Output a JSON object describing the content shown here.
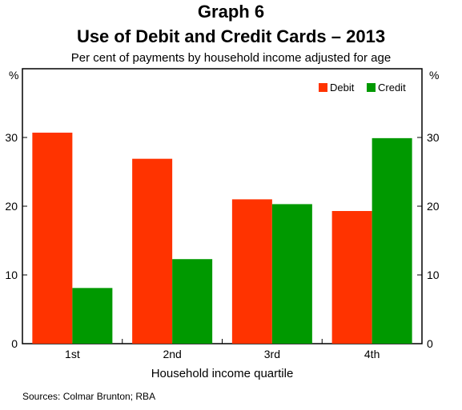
{
  "chart_data": {
    "type": "bar",
    "title": "Graph 6",
    "subtitle": "Use of Debit and Credit Cards – 2013",
    "description": "Per cent of payments by household income adjusted for age",
    "xlabel": "Household income quartile",
    "ylabel_left": "%",
    "ylabel_right": "%",
    "categories": [
      "1st",
      "2nd",
      "3rd",
      "4th"
    ],
    "series": [
      {
        "name": "Debit",
        "color": "#ff3300",
        "values": [
          30.7,
          26.9,
          21.0,
          19.3
        ]
      },
      {
        "name": "Credit",
        "color": "#009900",
        "values": [
          8.1,
          12.3,
          20.3,
          29.9
        ]
      }
    ],
    "ylim": [
      0,
      40
    ],
    "yticks": [
      0,
      10,
      20,
      30
    ],
    "legend_position": "top-right",
    "grid": false,
    "source": "Sources:   Colmar Brunton; RBA"
  }
}
